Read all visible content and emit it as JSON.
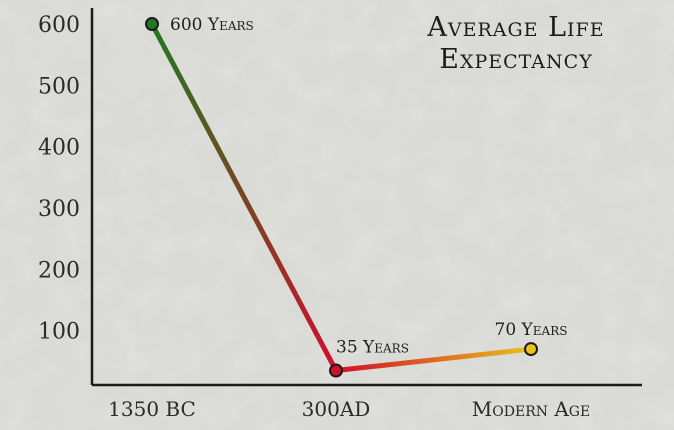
{
  "chart_data": {
    "type": "line",
    "title": [
      "Average Life",
      "Expectancy"
    ],
    "categories": [
      "1350 BC",
      "300AD",
      "Modern Age"
    ],
    "values": [
      600,
      35,
      70
    ],
    "point_labels": [
      "600 Years",
      "35 Years",
      "70 Years"
    ],
    "point_colors": [
      "#1f7a1f",
      "#d0102a",
      "#e8c41a"
    ],
    "y_ticks": [
      100,
      200,
      300,
      400,
      500,
      600
    ],
    "ylim": [
      0,
      600
    ],
    "xlabel": "",
    "ylabel": "",
    "grid": false,
    "legend": "none"
  }
}
